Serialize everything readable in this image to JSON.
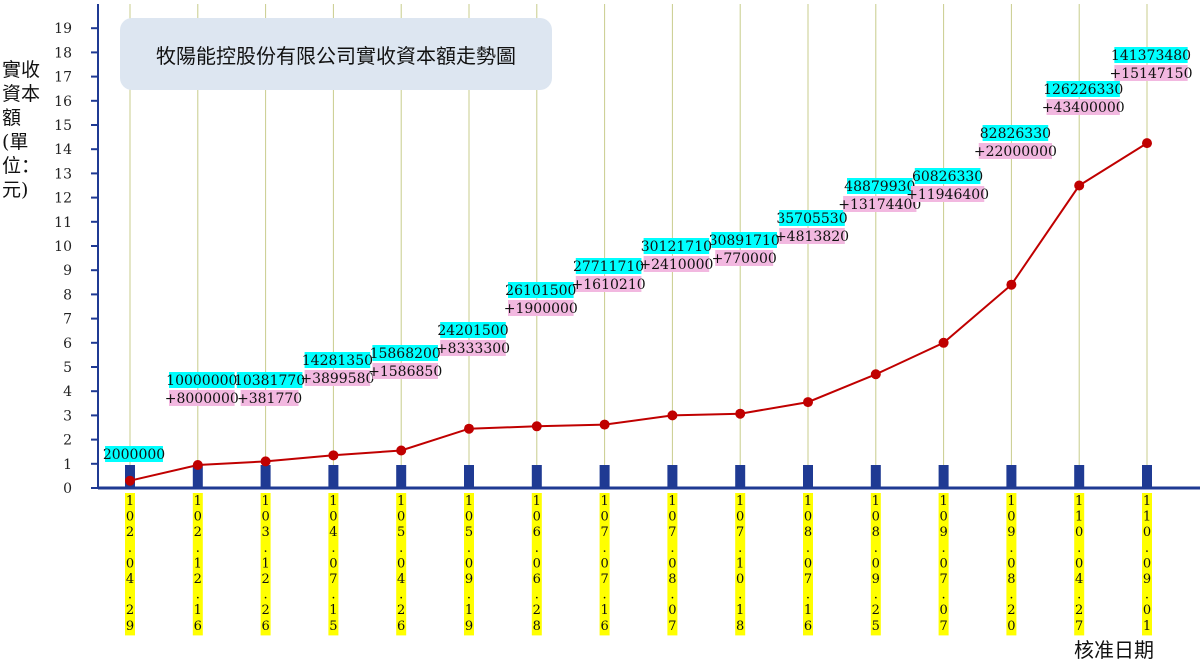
{
  "chart_data": {
    "type": "line",
    "title": "牧陽能控股份有限公司實收資本額走勢圖",
    "ylabel": "實收資本額(單位：元)",
    "xlabel": "核准日期",
    "ylim": [
      0,
      19
    ],
    "yticks": [
      "0",
      "1",
      "2",
      "3",
      "4",
      "5",
      "6",
      "7",
      "8",
      "9",
      "10",
      "11",
      "12",
      "13",
      "14",
      "15",
      "16",
      "17",
      "18",
      "19"
    ],
    "grid": true,
    "categories": [
      "102.04.29",
      "102.12.16",
      "103.12.26",
      "104.07.15",
      "105.04.26",
      "105.09.19",
      "106.06.28",
      "107.07.16",
      "107.08.07",
      "107.10.18",
      "108.07.16",
      "108.09.25",
      "109.07.07",
      "109.08.20",
      "110.04.27",
      "110.09.01"
    ],
    "values": [
      0.3,
      0.95,
      1.1,
      1.35,
      1.55,
      2.45,
      2.55,
      2.62,
      3.0,
      3.07,
      3.55,
      4.7,
      6.0,
      8.4,
      12.5,
      14.25
    ],
    "capital_labels": [
      "2000000",
      "10000000",
      "10381770",
      "14281350",
      "15868200",
      "24201500",
      "26101500",
      "27711710",
      "30121710",
      "30891710",
      "35705530",
      "48879930",
      "60826330",
      "82826330",
      "126226330",
      "141373480"
    ],
    "change_labels": [
      "",
      "+8000000",
      "+381770",
      "+3899580",
      "+1586850",
      "+8333300",
      "+1900000",
      "+1610210",
      "+2410000",
      "+770000",
      "+4813820",
      "+13174400",
      "+11946400",
      "+22000000",
      "+43400000",
      "+15147150"
    ],
    "colors": {
      "line": "#c00000",
      "point": "#c00000",
      "capital_label_bg": "#00ffff",
      "change_label_bg": "#f2b8e0",
      "date_label_bg": "#ffff00",
      "grid": "#c8cc8c",
      "axis": "#1f3a93",
      "bar_marker": "#1f3a93"
    }
  }
}
